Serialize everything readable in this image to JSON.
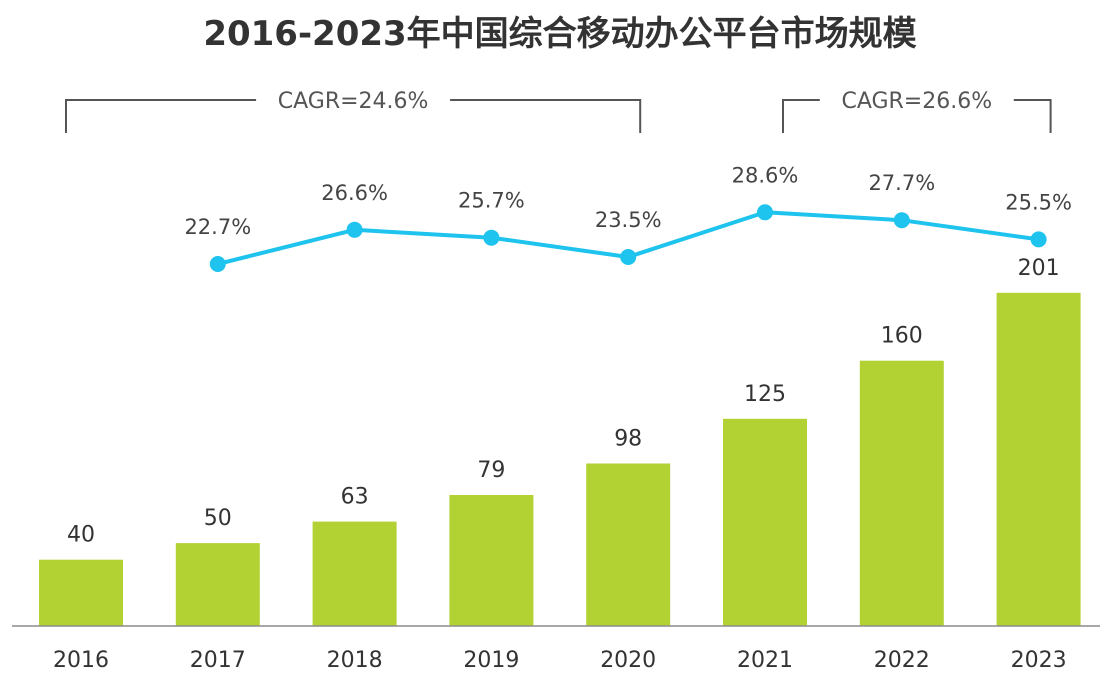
{
  "chart_data": {
    "type": "bar",
    "title": "2016-2023年中国综合移动办公平台市场规模",
    "categories": [
      "2016",
      "2017",
      "2018",
      "2019",
      "2020",
      "2021",
      "2022",
      "2023"
    ],
    "series": [
      {
        "type": "bar",
        "values": [
          40,
          50,
          63,
          79,
          98,
          125,
          160,
          201
        ],
        "color": "#b2d234"
      },
      {
        "type": "line",
        "values": [
          null,
          22.7,
          26.6,
          25.7,
          23.5,
          28.6,
          27.7,
          25.5
        ],
        "labels": [
          "",
          "22.7%",
          "26.6%",
          "25.7%",
          "23.5%",
          "28.6%",
          "27.7%",
          "25.5%"
        ],
        "color": "#1ec3ee"
      }
    ],
    "annotations": [
      {
        "text": "CAGR=24.6%",
        "from": "2016",
        "to": "2020"
      },
      {
        "text": "CAGR=26.6%",
        "from": "2021",
        "to": "2023"
      }
    ],
    "grid": false,
    "legend": "none"
  }
}
